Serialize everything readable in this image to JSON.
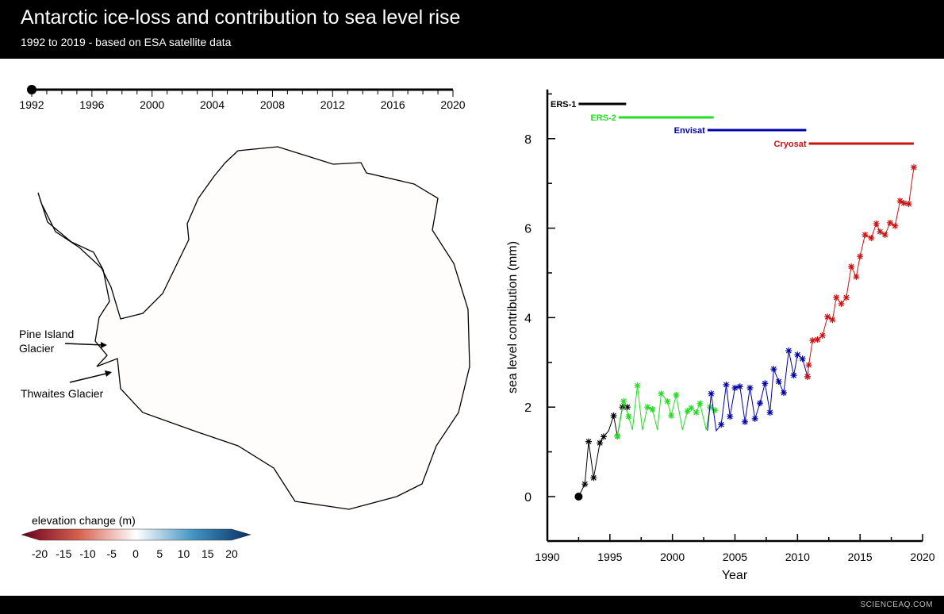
{
  "header": {
    "title": "Antarctic ice-loss and contribution to sea level rise",
    "subtitle": "1992 to 2019 - based on ESA satellite data"
  },
  "timeline": {
    "years": [
      "1992",
      "1996",
      "2000",
      "2004",
      "2008",
      "2012",
      "2016",
      "2020"
    ],
    "current": "1992"
  },
  "map": {
    "annotations": [
      "Pine Island\nGlacier",
      "Thwaites Glacier"
    ],
    "colorbar": {
      "title": "elevation change (m)",
      "ticks": [
        "-20",
        "-15",
        "-10",
        "-5",
        "0",
        "5",
        "10",
        "15",
        "20"
      ],
      "colors": [
        "#67001f",
        "#d6604d",
        "#ffffff",
        "#4393c3",
        "#053061"
      ]
    }
  },
  "footer": {
    "watermark": "SCIENCEAQ.COM"
  },
  "chart_data": {
    "type": "line",
    "xlabel": "Year",
    "ylabel": "sea level contribution (mm)",
    "xlim": [
      1990,
      2020
    ],
    "ylim": [
      -1,
      9.1
    ],
    "xticks": [
      1990,
      1995,
      2000,
      2005,
      2010,
      2015,
      2020
    ],
    "yticks": [
      0,
      2,
      4,
      6,
      8
    ],
    "start_marker": {
      "x": 1992.5,
      "y": 0
    },
    "series": [
      {
        "name": "ERS-1",
        "color": "#000000",
        "mission": [
          1992.5,
          1996.3
        ],
        "x": [
          1992.5,
          1993.0,
          1993.3,
          1993.7,
          1994.2,
          1994.5,
          1994.9,
          1995.3,
          1995.6,
          1996.0,
          1996.4
        ],
        "y": [
          0,
          0.28,
          1.23,
          0.42,
          1.2,
          1.34,
          1.47,
          1.81,
          1.35,
          2.0,
          2.0
        ]
      },
      {
        "name": "ERS-2",
        "color": "#22dd22",
        "mission": [
          1995.7,
          2003.3
        ],
        "x": [
          1995.6,
          1996.1,
          1996.5,
          1996.8,
          1997.2,
          1997.6,
          1998.0,
          1998.4,
          1998.8,
          1999.1,
          1999.6,
          1999.9,
          2000.3,
          2000.8,
          2001.2,
          2001.5,
          2001.9,
          2002.2,
          2002.7,
          2003.0,
          2003.4
        ],
        "y": [
          1.35,
          2.13,
          1.79,
          1.49,
          2.48,
          1.49,
          2.0,
          1.95,
          1.49,
          2.3,
          2.13,
          1.81,
          2.27,
          1.49,
          1.91,
          1.98,
          1.88,
          2.08,
          1.49,
          2.0,
          1.93
        ]
      },
      {
        "name": "Envisat",
        "color": "#0000aa",
        "mission": [
          2002.8,
          2010.7
        ],
        "x": [
          2002.8,
          2003.1,
          2003.5,
          2003.9,
          2004.3,
          2004.6,
          2005.0,
          2005.4,
          2005.8,
          2006.2,
          2006.6,
          2007.0,
          2007.4,
          2007.8,
          2008.1,
          2008.5,
          2008.9,
          2009.3,
          2009.7,
          2010.0,
          2010.4,
          2010.8
        ],
        "y": [
          1.47,
          2.3,
          1.47,
          1.61,
          2.5,
          1.79,
          2.43,
          2.46,
          1.67,
          2.43,
          1.74,
          2.09,
          2.53,
          1.88,
          2.85,
          2.57,
          2.32,
          3.26,
          2.71,
          3.17,
          3.08,
          2.68
        ]
      },
      {
        "name": "Cryosat",
        "color": "#cc1111",
        "mission": [
          2010.9,
          2019.3
        ],
        "x": [
          2010.8,
          2010.9,
          2011.2,
          2011.6,
          2012.0,
          2012.4,
          2012.8,
          2013.1,
          2013.5,
          2013.9,
          2014.3,
          2014.7,
          2015.0,
          2015.4,
          2015.9,
          2016.3,
          2016.6,
          2017.0,
          2017.4,
          2017.8,
          2018.2,
          2018.5,
          2018.9,
          2019.3
        ],
        "y": [
          2.68,
          2.94,
          3.49,
          3.51,
          3.6,
          4.02,
          3.95,
          4.45,
          4.31,
          4.45,
          5.14,
          4.91,
          5.37,
          5.85,
          5.78,
          6.1,
          5.92,
          5.85,
          6.12,
          6.05,
          6.61,
          6.56,
          6.54,
          7.36
        ]
      }
    ]
  }
}
